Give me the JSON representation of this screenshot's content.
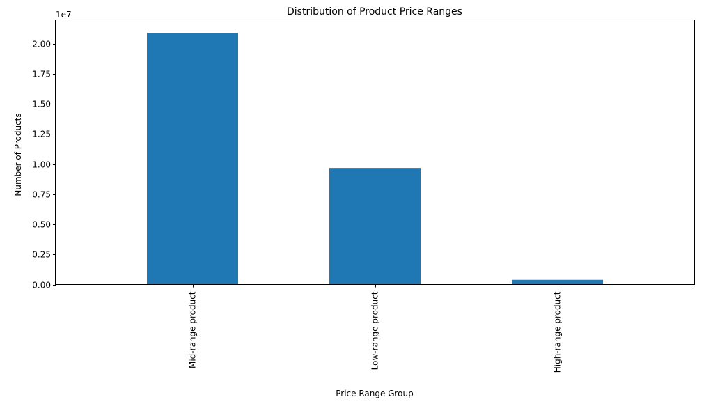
{
  "chart_data": {
    "type": "bar",
    "title": "Distribution of Product Price Ranges",
    "xlabel": "Price Range Group",
    "ylabel": "Number of Products",
    "offset_label": "1e7",
    "categories": [
      "Mid-range product",
      "Low-range product",
      "High-range product"
    ],
    "values": [
      20900000,
      9680000,
      390000
    ],
    "ylim": [
      0,
      21950000
    ],
    "yticks": [
      0,
      2500000,
      5000000,
      7500000,
      10000000,
      12500000,
      15000000,
      17500000,
      20000000
    ],
    "ytick_labels": [
      "0.00",
      "0.25",
      "0.50",
      "0.75",
      "1.00",
      "1.25",
      "1.50",
      "1.75",
      "2.00"
    ],
    "bar_color": "#1f77b4",
    "grid": false,
    "legend": false
  }
}
